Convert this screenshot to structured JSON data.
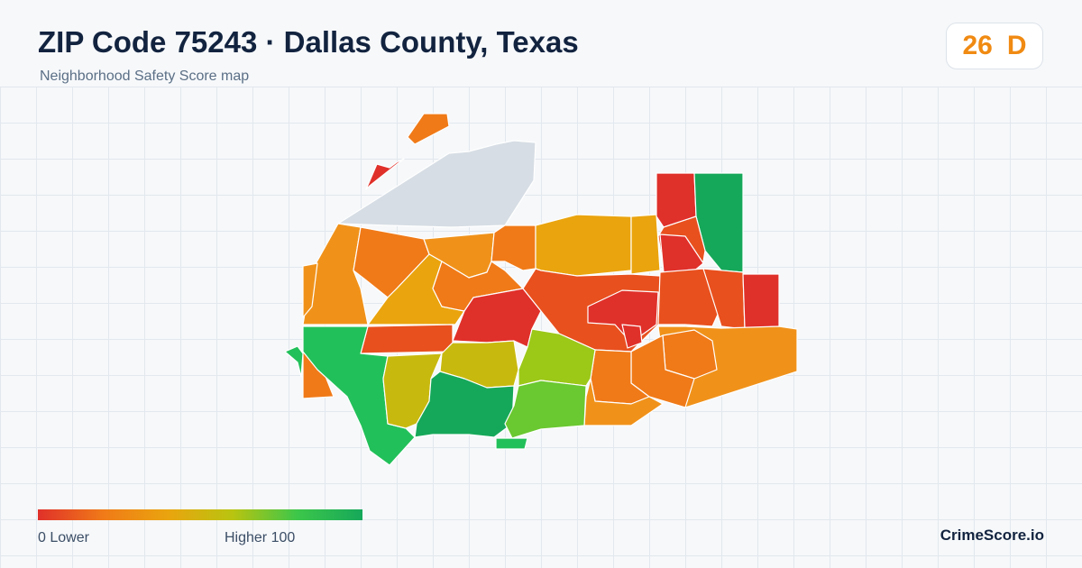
{
  "header": {
    "title": "ZIP Code 75243 · Dallas County, Texas",
    "subtitle": "Neighborhood Safety Score map"
  },
  "score": {
    "value": "26",
    "grade": "D",
    "color": "#f08a12"
  },
  "legend": {
    "min_label": "0  Lower",
    "max_label": "Higher  100",
    "colors": [
      "#e0302a",
      "#f07a18",
      "#eaa40e",
      "#b9c410",
      "#3cc64a",
      "#16a85a"
    ]
  },
  "map": {
    "no_data_color": "#d6dde4",
    "region_colors": [
      "#e0302a",
      "#e8501e",
      "#f07a18",
      "#f0921a",
      "#eaa40e",
      "#c8b90f",
      "#9cc818",
      "#6ac830",
      "#22c05a",
      "#16a85a"
    ]
  },
  "brand": "CrimeScore.io"
}
